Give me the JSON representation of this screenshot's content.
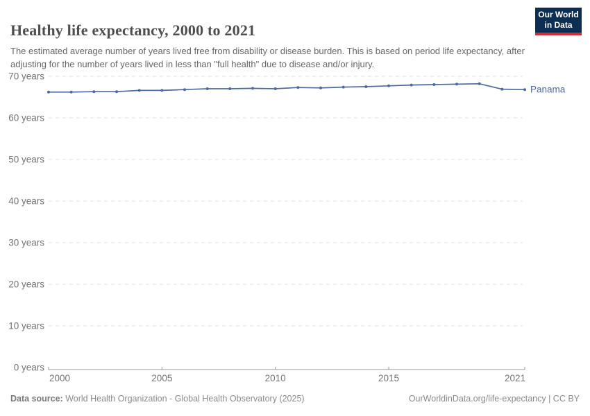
{
  "header": {
    "title": "Healthy life expectancy, 2000 to 2021",
    "subtitle": "The estimated average number of years lived free from disability or disease burden. This is based on period life expectancy, after adjusting for the number of years lived in less than \"full health\" due to disease and/or injury.",
    "logo": {
      "line1": "Our World",
      "line2": "in Data",
      "bg_color": "#0d2e53",
      "accent_color": "#d12b35"
    }
  },
  "chart_data": {
    "type": "line",
    "title": "Healthy life expectancy, 2000 to 2021",
    "unit": "years",
    "grid": "horizontal-dashed",
    "legend_position": "end-of-line-label",
    "ylim": [
      0,
      70
    ],
    "x": [
      2000,
      2001,
      2002,
      2003,
      2004,
      2005,
      2006,
      2007,
      2008,
      2009,
      2010,
      2011,
      2012,
      2013,
      2014,
      2015,
      2016,
      2017,
      2018,
      2019,
      2020,
      2021
    ],
    "series": [
      {
        "name": "Panama",
        "color": "#4C6A9C",
        "values": [
          66.2,
          66.2,
          66.3,
          66.3,
          66.6,
          66.6,
          66.8,
          67.0,
          67.0,
          67.1,
          67.0,
          67.3,
          67.2,
          67.4,
          67.5,
          67.7,
          67.9,
          68.0,
          68.1,
          68.2,
          66.9,
          66.8
        ]
      }
    ],
    "yticks": [
      {
        "value": 0,
        "label": "0 years"
      },
      {
        "value": 10,
        "label": "10 years"
      },
      {
        "value": 20,
        "label": "20 years"
      },
      {
        "value": 30,
        "label": "30 years"
      },
      {
        "value": 40,
        "label": "40 years"
      },
      {
        "value": 50,
        "label": "50 years"
      },
      {
        "value": 60,
        "label": "60 years"
      },
      {
        "value": 70,
        "label": "70 years"
      }
    ],
    "xticks": [
      {
        "value": 2000,
        "label": "2000"
      },
      {
        "value": 2005,
        "label": "2005"
      },
      {
        "value": 2010,
        "label": "2010"
      },
      {
        "value": 2015,
        "label": "2015"
      },
      {
        "value": 2021,
        "label": "2021"
      }
    ],
    "colors": {
      "gridline": "#dcdcdc",
      "axis": "#999999",
      "tick_label": "#737373"
    }
  },
  "footer": {
    "source_label": "Data source:",
    "source_text": " World Health Organization - Global Health Observatory (2025)",
    "link_text": "OurWorldinData.org/life-expectancy | CC BY"
  }
}
